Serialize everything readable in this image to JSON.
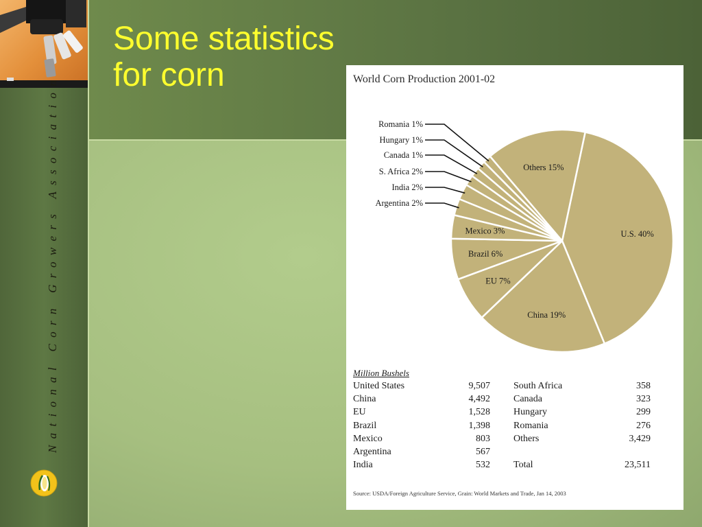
{
  "slide": {
    "title_line1": "Some statistics",
    "title_line2": "for corn",
    "sidebar_text": "National Corn Growers Association"
  },
  "chart_data": {
    "type": "pie",
    "title": "World Corn Production 2001-02",
    "slices": [
      {
        "label": "U.S.",
        "pct_label": "U.S. 40%",
        "value": 9507
      },
      {
        "label": "China",
        "pct_label": "China 19%",
        "value": 4492
      },
      {
        "label": "EU",
        "pct_label": "EU 7%",
        "value": 1528
      },
      {
        "label": "Brazil",
        "pct_label": "Brazil 6%",
        "value": 1398
      },
      {
        "label": "Mexico",
        "pct_label": "Mexico 3%",
        "value": 803
      },
      {
        "label": "Argentina",
        "pct_label": "Argentina 2%",
        "value": 567
      },
      {
        "label": "India",
        "pct_label": "India 2%",
        "value": 532
      },
      {
        "label": "S. Africa",
        "pct_label": "S. Africa 2%",
        "value": 358
      },
      {
        "label": "Canada",
        "pct_label": "Canada 1%",
        "value": 323
      },
      {
        "label": "Hungary",
        "pct_label": "Hungary 1%",
        "value": 299
      },
      {
        "label": "Romania",
        "pct_label": "Romania 1%",
        "value": 276
      },
      {
        "label": "Others",
        "pct_label": "Others 15%",
        "value": 3429
      }
    ],
    "table": {
      "caption": "Million Bushels",
      "left_column": [
        {
          "name": "United States",
          "value": "9,507"
        },
        {
          "name": "China",
          "value": "4,492"
        },
        {
          "name": "EU",
          "value": "1,528"
        },
        {
          "name": "Brazil",
          "value": "1,398"
        },
        {
          "name": "Mexico",
          "value": "803"
        },
        {
          "name": "Argentina",
          "value": "567"
        },
        {
          "name": "India",
          "value": "532"
        }
      ],
      "right_column": [
        {
          "name": "South Africa",
          "value": "358"
        },
        {
          "name": "Canada",
          "value": "323"
        },
        {
          "name": "Hungary",
          "value": "299"
        },
        {
          "name": "Romania",
          "value": "276"
        },
        {
          "name": "Others",
          "value": "3,429"
        },
        {
          "name": "",
          "value": ""
        },
        {
          "name": "Total",
          "value": "23,511"
        }
      ]
    },
    "source": "Source: USDA/Foreign Agriculture Service, Grain: World Markets and Trade, Jan 14, 2003"
  },
  "colors": {
    "slice_fill": "#c2b27a",
    "slice_stroke": "#ffffff",
    "title_color": "#ffff2e"
  },
  "icons": {
    "corner_art": "microscope-icon",
    "emblem": "corn-emblem-icon"
  }
}
